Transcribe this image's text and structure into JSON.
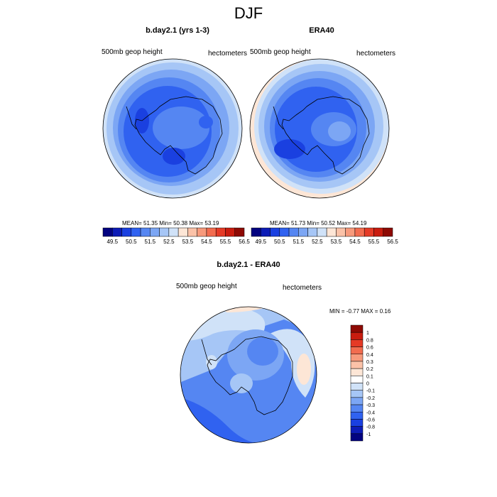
{
  "title": "DJF",
  "palette": [
    "#030380",
    "#0d1cb6",
    "#1a40e0",
    "#3062f0",
    "#5586f2",
    "#7ca6f4",
    "#a6c6f6",
    "#d0e2f8",
    "#fde6d6",
    "#fbc2a8",
    "#f79a7c",
    "#f26c4f",
    "#e53a26",
    "#c91c0f",
    "#8e0a04"
  ],
  "panels": [
    {
      "title": "b.day2.1 (yrs 1-3)",
      "left_label": "500mb geop height",
      "right_label": "hectometers",
      "stats": {
        "mean_label": "MEAN=",
        "mean": "51.35",
        "min_label": "Min=",
        "min": "50.38",
        "max_label": "Max=",
        "max": "53.19"
      },
      "colorbar_labels": [
        "49.5",
        "50.5",
        "51.5",
        "52.5",
        "53.5",
        "54.5",
        "55.5",
        "56.5"
      ]
    },
    {
      "title": "ERA40",
      "left_label": "500mb geop height",
      "right_label": "hectometers",
      "stats": {
        "mean_label": "MEAN=",
        "mean": "51.73",
        "min_label": "Min=",
        "min": "50.52",
        "max_label": "Max=",
        "max": "54.19"
      },
      "colorbar_labels": [
        "49.5",
        "50.5",
        "51.5",
        "52.5",
        "53.5",
        "54.5",
        "55.5",
        "56.5"
      ]
    }
  ],
  "diff": {
    "title": "b.day2.1 - ERA40",
    "left_label": "500mb geop height",
    "right_label": "hectometers",
    "stats_text": "MIN = -0.77 MAX =   0.16",
    "colorbar_labels": [
      "1",
      "0.8",
      "0.6",
      "0.4",
      "0.3",
      "0.2",
      "0.1",
      "0",
      "-0.1",
      "-0.2",
      "-0.3",
      "-0.4",
      "-0.6",
      "-0.8",
      "-1"
    ],
    "colorbar_colors": [
      "#8e0a04",
      "#c91c0f",
      "#e53a26",
      "#f26c4f",
      "#f79a7c",
      "#fbc2a8",
      "#fde6d6",
      "#ffffff",
      "#d0e2f8",
      "#a6c6f6",
      "#7ca6f4",
      "#5586f2",
      "#3062f0",
      "#1a40e0",
      "#0d1cb6",
      "#030380"
    ]
  }
}
